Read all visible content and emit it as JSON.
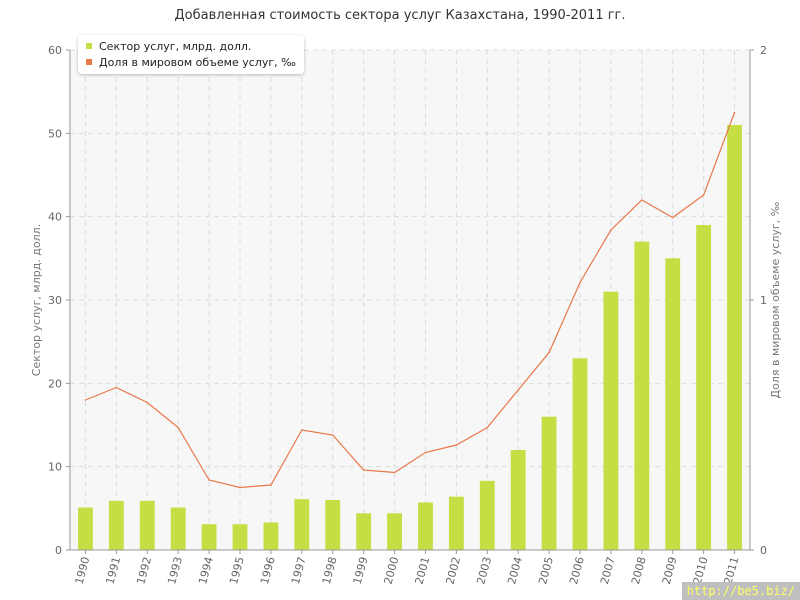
{
  "chart_data": {
    "type": "bar",
    "title": "Добавленная стоимость сектора услуг Казахстана, 1990-2011 гг.",
    "categories": [
      "1990",
      "1991",
      "1992",
      "1993",
      "1994",
      "1995",
      "1996",
      "1997",
      "1998",
      "1999",
      "2000",
      "2001",
      "2002",
      "2003",
      "2004",
      "2005",
      "2006",
      "2007",
      "2008",
      "2009",
      "2010",
      "2011"
    ],
    "series": [
      {
        "name": "Сектор услуг, млрд. долл.",
        "type": "bar",
        "axis": "left",
        "color": "#c3df43",
        "values": [
          5.1,
          5.9,
          5.9,
          5.1,
          3.1,
          3.1,
          3.3,
          6.1,
          6.0,
          4.4,
          4.4,
          5.7,
          6.4,
          8.3,
          12.0,
          16.0,
          23.0,
          31.0,
          37.0,
          35.0,
          39.0,
          51.0
        ]
      },
      {
        "name": "Доля в мировом объеме услуг, ‰",
        "type": "line",
        "axis": "right",
        "color": "#e8794a",
        "values": [
          0.6,
          0.65,
          0.59,
          0.49,
          0.28,
          0.25,
          0.26,
          0.48,
          0.46,
          0.32,
          0.31,
          0.39,
          0.42,
          0.49,
          0.64,
          0.79,
          1.07,
          1.28,
          1.4,
          1.33,
          1.42,
          1.75
        ]
      }
    ],
    "ylabel_left": "Сектор услуг, млрд. долл.",
    "ylabel_right": "Доля в мировом объеме услуг, ‰",
    "ylim_left": [
      0,
      60
    ],
    "ylim_right": [
      0,
      2
    ],
    "yticks_left": [
      "0",
      "10",
      "20",
      "30",
      "40",
      "50",
      "60"
    ],
    "yticks_right": [
      "0",
      "1",
      "2"
    ],
    "grid": true,
    "legend_position": "top-left"
  },
  "watermark": "http://be5.biz/"
}
